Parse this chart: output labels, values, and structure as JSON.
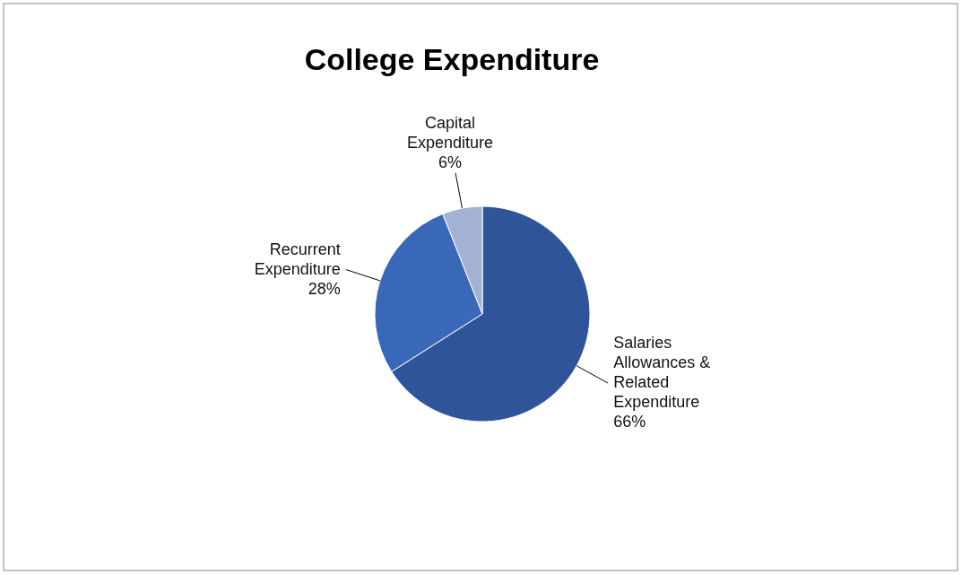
{
  "chart_data": {
    "type": "pie",
    "title": "College Expenditure",
    "categories": [
      "Salaries Allowances & Related Expenditure",
      "Recurrent Expenditure",
      "Capital Expenditure"
    ],
    "values": [
      66,
      28,
      6
    ],
    "colors": [
      "#30549a",
      "#3a68b8",
      "#a3b2d3"
    ],
    "value_labels": [
      "66%",
      "28%",
      "6%"
    ],
    "legend": false
  }
}
